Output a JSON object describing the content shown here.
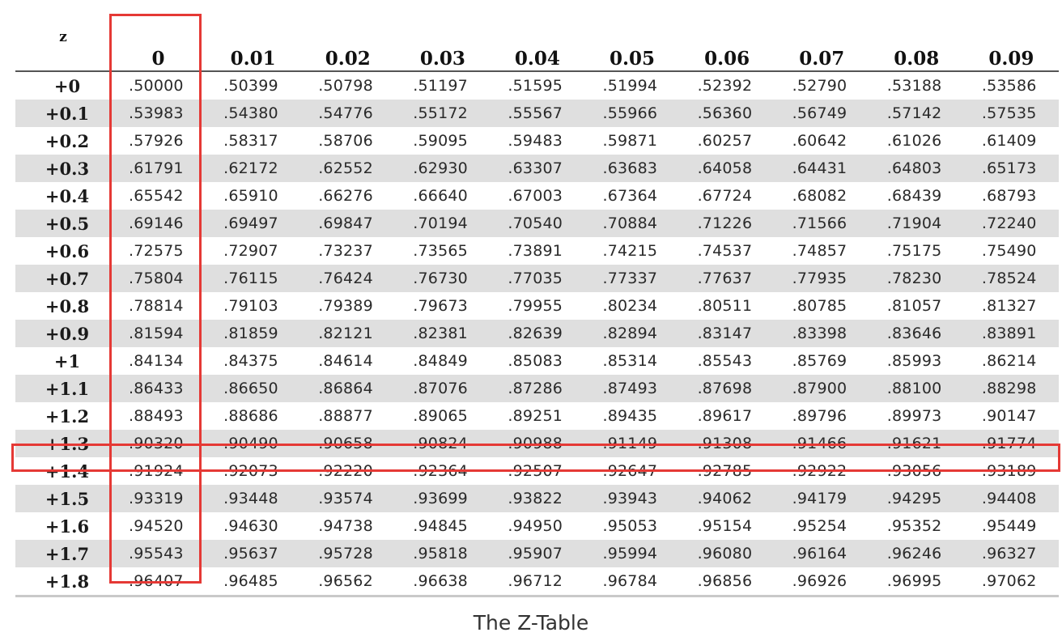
{
  "table": {
    "header": {
      "z": "z",
      "cols": [
        "0",
        "0.01",
        "0.02",
        "0.03",
        "0.04",
        "0.05",
        "0.06",
        "0.07",
        "0.08",
        "0.09"
      ]
    },
    "rows": [
      {
        "z": "+0",
        "values": [
          ".50000",
          ".50399",
          ".50798",
          ".51197",
          ".51595",
          ".51994",
          ".52392",
          ".52790",
          ".53188",
          ".53586"
        ]
      },
      {
        "z": "+0.1",
        "values": [
          ".53983",
          ".54380",
          ".54776",
          ".55172",
          ".55567",
          ".55966",
          ".56360",
          ".56749",
          ".57142",
          ".57535"
        ]
      },
      {
        "z": "+0.2",
        "values": [
          ".57926",
          ".58317",
          ".58706",
          ".59095",
          ".59483",
          ".59871",
          ".60257",
          ".60642",
          ".61026",
          ".61409"
        ]
      },
      {
        "z": "+0.3",
        "values": [
          ".61791",
          ".62172",
          ".62552",
          ".62930",
          ".63307",
          ".63683",
          ".64058",
          ".64431",
          ".64803",
          ".65173"
        ]
      },
      {
        "z": "+0.4",
        "values": [
          ".65542",
          ".65910",
          ".66276",
          ".66640",
          ".67003",
          ".67364",
          ".67724",
          ".68082",
          ".68439",
          ".68793"
        ]
      },
      {
        "z": "+0.5",
        "values": [
          ".69146",
          ".69497",
          ".69847",
          ".70194",
          ".70540",
          ".70884",
          ".71226",
          ".71566",
          ".71904",
          ".72240"
        ]
      },
      {
        "z": "+0.6",
        "values": [
          ".72575",
          ".72907",
          ".73237",
          ".73565",
          ".73891",
          ".74215",
          ".74537",
          ".74857",
          ".75175",
          ".75490"
        ]
      },
      {
        "z": "+0.7",
        "values": [
          ".75804",
          ".76115",
          ".76424",
          ".76730",
          ".77035",
          ".77337",
          ".77637",
          ".77935",
          ".78230",
          ".78524"
        ]
      },
      {
        "z": "+0.8",
        "values": [
          ".78814",
          ".79103",
          ".79389",
          ".79673",
          ".79955",
          ".80234",
          ".80511",
          ".80785",
          ".81057",
          ".81327"
        ]
      },
      {
        "z": "+0.9",
        "values": [
          ".81594",
          ".81859",
          ".82121",
          ".82381",
          ".82639",
          ".82894",
          ".83147",
          ".83398",
          ".83646",
          ".83891"
        ]
      },
      {
        "z": "+1",
        "values": [
          ".84134",
          ".84375",
          ".84614",
          ".84849",
          ".85083",
          ".85314",
          ".85543",
          ".85769",
          ".85993",
          ".86214"
        ]
      },
      {
        "z": "+1.1",
        "values": [
          ".86433",
          ".86650",
          ".86864",
          ".87076",
          ".87286",
          ".87493",
          ".87698",
          ".87900",
          ".88100",
          ".88298"
        ]
      },
      {
        "z": "+1.2",
        "values": [
          ".88493",
          ".88686",
          ".88877",
          ".89065",
          ".89251",
          ".89435",
          ".89617",
          ".89796",
          ".89973",
          ".90147"
        ]
      },
      {
        "z": "+1.3",
        "values": [
          ".90320",
          ".90490",
          ".90658",
          ".90824",
          ".90988",
          ".91149",
          ".91308",
          ".91466",
          ".91621",
          ".91774"
        ]
      },
      {
        "z": "+1.4",
        "values": [
          ".91924",
          ".92073",
          ".92220",
          ".92364",
          ".92507",
          ".92647",
          ".92785",
          ".92922",
          ".93056",
          ".93189"
        ]
      },
      {
        "z": "+1.5",
        "values": [
          ".93319",
          ".93448",
          ".93574",
          ".93699",
          ".93822",
          ".93943",
          ".94062",
          ".94179",
          ".94295",
          ".94408"
        ]
      },
      {
        "z": "+1.6",
        "values": [
          ".94520",
          ".94630",
          ".94738",
          ".94845",
          ".94950",
          ".95053",
          ".95154",
          ".95254",
          ".95352",
          ".95449"
        ]
      },
      {
        "z": "+1.7",
        "values": [
          ".95543",
          ".95637",
          ".95728",
          ".95818",
          ".95907",
          ".95994",
          ".96080",
          ".96164",
          ".96246",
          ".96327"
        ]
      },
      {
        "z": "+1.8",
        "values": [
          ".96407",
          ".96485",
          ".96562",
          ".96638",
          ".96712",
          ".96784",
          ".96856",
          ".96926",
          ".96995",
          ".97062"
        ]
      }
    ]
  },
  "highlight": {
    "color": "#e53935",
    "column": "0",
    "row": "+1.4"
  },
  "caption": "The Z-Table"
}
